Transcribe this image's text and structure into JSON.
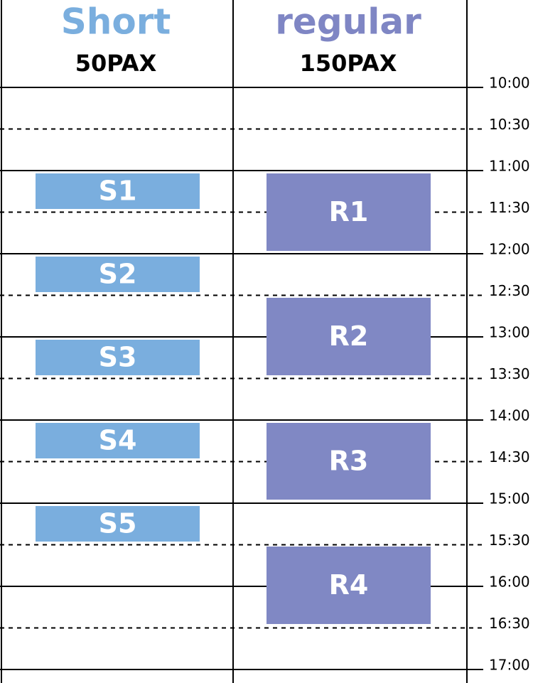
{
  "columns": [
    {
      "title": "Short",
      "capacity": "50PAX",
      "blocks": [
        "S1",
        "S2",
        "S3",
        "S4",
        "S5"
      ]
    },
    {
      "title": "regular",
      "capacity": "150PAX",
      "blocks": [
        "R1",
        "R2",
        "R3",
        "R4"
      ]
    }
  ],
  "times": [
    "10:00",
    "10:30",
    "11:00",
    "11:30",
    "12:00",
    "12:30",
    "13:00",
    "13:30",
    "14:00",
    "14:30",
    "15:00",
    "15:30",
    "16:00",
    "16:30",
    "17:00"
  ]
}
